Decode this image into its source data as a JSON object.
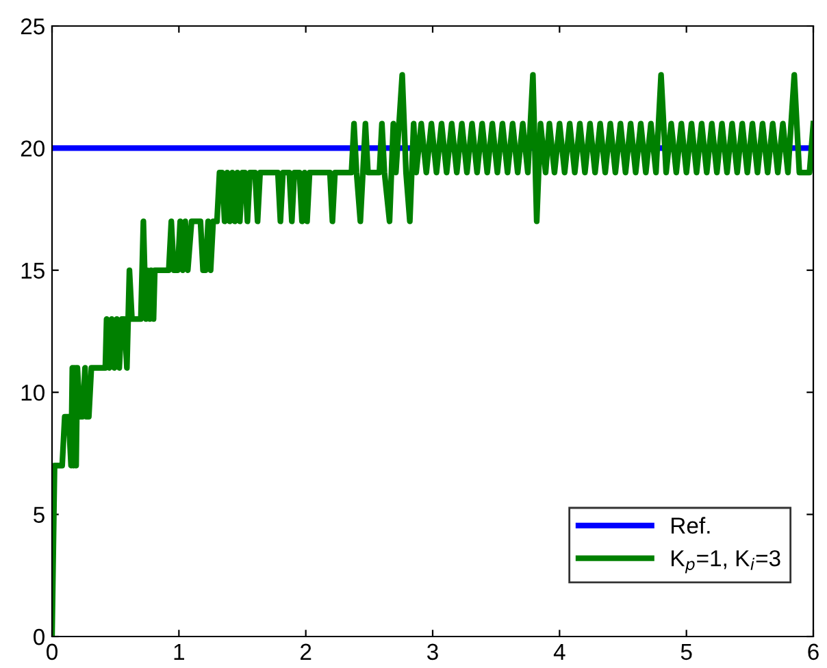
{
  "chart_data": {
    "type": "line",
    "xlim": [
      0,
      6
    ],
    "xticks": [
      0,
      1,
      2,
      3,
      4,
      5,
      6
    ],
    "ylim": [
      0,
      25
    ],
    "yticks": [
      0,
      5,
      10,
      15,
      20,
      25
    ],
    "legend": "bottom right",
    "grid": false,
    "line_style": "solid",
    "marker": "none",
    "series": [
      {
        "name": "Ref.",
        "color": "#0000ff",
        "x": [
          0,
          6
        ],
        "values": [
          20,
          20
        ]
      },
      {
        "name": "K$_{p}$=1, K$_{i}$=3",
        "color": "#008000",
        "x": [
          0,
          0.02,
          0.08,
          0.1,
          0.13,
          0.15,
          0.16,
          0.17,
          0.18,
          0.19,
          0.2,
          0.22,
          0.24,
          0.26,
          0.27,
          0.29,
          0.31,
          0.42,
          0.43,
          0.45,
          0.47,
          0.49,
          0.51,
          0.53,
          0.55,
          0.57,
          0.59,
          0.61,
          0.63,
          0.7,
          0.72,
          0.74,
          0.75,
          0.77,
          0.78,
          0.8,
          0.81,
          0.92,
          0.94,
          0.96,
          0.99,
          1.01,
          1.03,
          1.05,
          1.07,
          1.1,
          1.17,
          1.19,
          1.21,
          1.23,
          1.25,
          1.27,
          1.3,
          1.32,
          1.34,
          1.36,
          1.38,
          1.4,
          1.42,
          1.44,
          1.46,
          1.48,
          1.5,
          1.52,
          1.54,
          1.56,
          1.6,
          1.62,
          1.64,
          1.78,
          1.8,
          1.82,
          1.87,
          1.89,
          1.91,
          1.95,
          1.97,
          1.99,
          2.01,
          2.03,
          2.19,
          2.21,
          2.23,
          2.36,
          2.38,
          2.4,
          2.43,
          2.45,
          2.47,
          2.49,
          2.58,
          2.6,
          2.62,
          2.66,
          2.69,
          2.71,
          2.76,
          2.79,
          2.82,
          2.85,
          2.87,
          2.91,
          2.95,
          2.99,
          3.03,
          3.07,
          3.11,
          3.15,
          3.19,
          3.23,
          3.27,
          3.31,
          3.35,
          3.39,
          3.43,
          3.47,
          3.51,
          3.55,
          3.59,
          3.63,
          3.67,
          3.71,
          3.75,
          3.79,
          3.82,
          3.85,
          3.89,
          3.92,
          3.96,
          4.0,
          4.04,
          4.08,
          4.12,
          4.16,
          4.2,
          4.24,
          4.28,
          4.32,
          4.36,
          4.4,
          4.44,
          4.48,
          4.52,
          4.56,
          4.6,
          4.64,
          4.68,
          4.72,
          4.76,
          4.8,
          4.84,
          4.88,
          4.92,
          4.96,
          5.0,
          5.04,
          5.08,
          5.12,
          5.16,
          5.2,
          5.24,
          5.28,
          5.32,
          5.36,
          5.4,
          5.44,
          5.48,
          5.52,
          5.56,
          5.6,
          5.64,
          5.68,
          5.72,
          5.76,
          5.8,
          5.85,
          5.89,
          5.97,
          6.0
        ],
        "values": [
          0,
          7,
          7,
          9,
          9,
          7,
          11,
          7,
          11,
          7,
          11,
          9,
          9,
          11,
          9,
          9,
          11,
          11,
          13,
          11,
          13,
          11,
          13,
          11,
          13,
          13,
          11,
          15,
          13,
          13,
          17,
          13,
          15,
          13,
          15,
          13,
          15,
          15,
          17,
          15,
          15,
          17,
          15,
          17,
          15,
          17,
          17,
          15,
          15,
          17,
          15,
          17,
          17,
          19,
          19,
          17,
          19,
          17,
          19,
          17,
          19,
          17,
          19,
          19,
          17,
          19,
          19,
          17,
          19,
          19,
          17,
          19,
          19,
          17,
          19,
          19,
          17,
          19,
          17,
          19,
          19,
          17,
          19,
          19,
          21,
          19,
          17,
          19,
          21,
          19,
          19,
          21,
          19,
          17,
          21,
          19,
          23,
          19,
          17,
          21,
          19,
          21,
          19,
          21,
          19,
          21,
          19,
          21,
          19,
          21,
          19,
          21,
          19,
          21,
          19,
          21,
          19,
          21,
          19,
          21,
          19,
          21,
          19,
          23,
          17,
          21,
          19,
          21,
          19,
          21,
          19,
          21,
          19,
          21,
          19,
          21,
          19,
          21,
          19,
          21,
          19,
          21,
          19,
          21,
          19,
          21,
          19,
          21,
          19,
          23,
          19,
          21,
          19,
          21,
          19,
          21,
          19,
          21,
          19,
          21,
          19,
          21,
          19,
          21,
          19,
          21,
          19,
          21,
          19,
          21,
          19,
          21,
          19,
          21,
          19,
          23,
          19,
          19,
          21
        ]
      }
    ]
  }
}
